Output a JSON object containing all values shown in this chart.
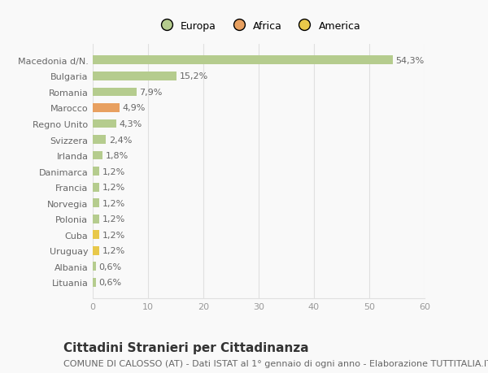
{
  "categories": [
    "Lituania",
    "Albania",
    "Uruguay",
    "Cuba",
    "Polonia",
    "Norvegia",
    "Francia",
    "Danimarca",
    "Irlanda",
    "Svizzera",
    "Regno Unito",
    "Marocco",
    "Romania",
    "Bulgaria",
    "Macedonia d/N."
  ],
  "values": [
    0.6,
    0.6,
    1.2,
    1.2,
    1.2,
    1.2,
    1.2,
    1.2,
    1.8,
    2.4,
    4.3,
    4.9,
    7.9,
    15.2,
    54.3
  ],
  "labels": [
    "0,6%",
    "0,6%",
    "1,2%",
    "1,2%",
    "1,2%",
    "1,2%",
    "1,2%",
    "1,2%",
    "1,8%",
    "2,4%",
    "4,3%",
    "4,9%",
    "7,9%",
    "15,2%",
    "54,3%"
  ],
  "colors": [
    "#b5cc8e",
    "#b5cc8e",
    "#e8c84a",
    "#e8c84a",
    "#b5cc8e",
    "#b5cc8e",
    "#b5cc8e",
    "#b5cc8e",
    "#b5cc8e",
    "#b5cc8e",
    "#b5cc8e",
    "#e8a060",
    "#b5cc8e",
    "#b5cc8e",
    "#b5cc8e"
  ],
  "legend_colors": {
    "Europa": "#b5cc8e",
    "Africa": "#e8a060",
    "America": "#e8c84a"
  },
  "title": "Cittadini Stranieri per Cittadinanza",
  "subtitle": "COMUNE DI CALOSSO (AT) - Dati ISTAT al 1° gennaio di ogni anno - Elaborazione TUTTITALIA.IT",
  "xlim": [
    0,
    60
  ],
  "xticks": [
    0,
    10,
    20,
    30,
    40,
    50,
    60
  ],
  "background_color": "#f9f9f9",
  "grid_color": "#e0e0e0",
  "bar_height": 0.55,
  "title_fontsize": 11,
  "subtitle_fontsize": 8,
  "label_fontsize": 8,
  "tick_fontsize": 8,
  "legend_fontsize": 9
}
